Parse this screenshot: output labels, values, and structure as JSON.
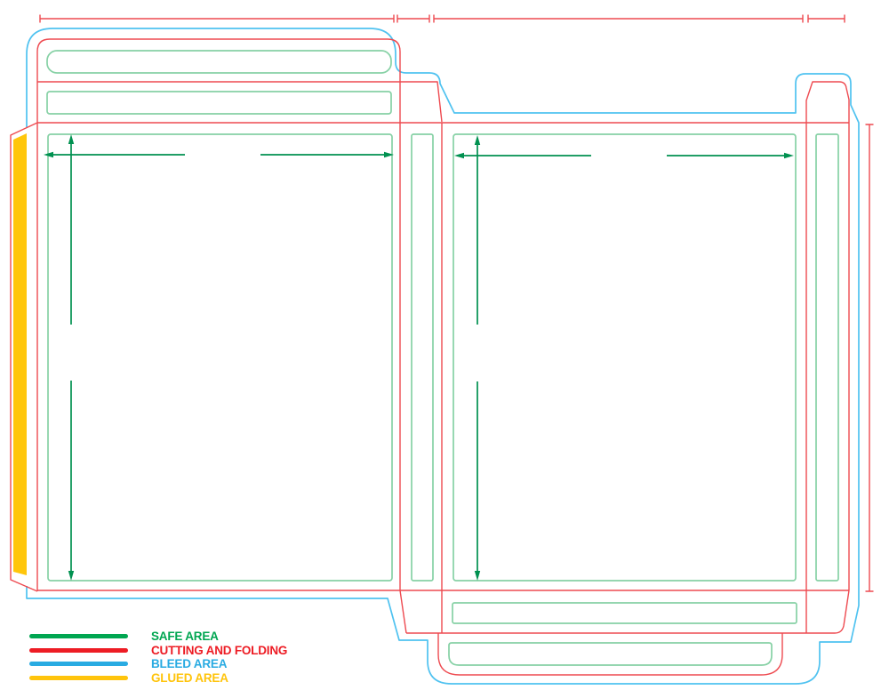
{
  "colors": {
    "red": "#EE4A50",
    "cyan": "#4FC2F0",
    "green_light": "#86D1A5",
    "green_dark": "#009150",
    "yellow": "#FFC60B"
  },
  "legend": {
    "items": [
      {
        "id": "safe-area",
        "label": "SAFE AREA",
        "color": "#00A651"
      },
      {
        "id": "cutting-and-folding",
        "label": "CUTTING AND FOLDING",
        "color": "#ED1C24"
      },
      {
        "id": "bleed-area",
        "label": "BLEED AREA",
        "color": "#29ABE2"
      },
      {
        "id": "glued-area",
        "label": "GLUED AREA",
        "color": "#FFC40C"
      }
    ]
  }
}
